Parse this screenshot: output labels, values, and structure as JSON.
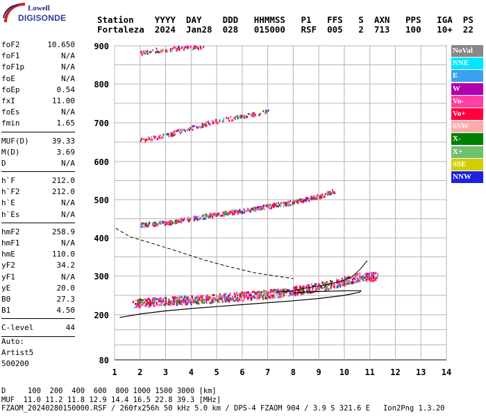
{
  "logo": {
    "top": "Lowell",
    "bottom": "DIGISONDE"
  },
  "header": {
    "labels": [
      "Station",
      "YYYY",
      "DAY",
      "DDD",
      "HHMMSS",
      "P1",
      "FFS",
      "S",
      "AXN",
      "PPS",
      "IGA",
      "PS"
    ],
    "values": [
      "Fortaleza",
      "2024",
      "Jan28",
      "028",
      "015000",
      "RSF",
      "005",
      "2",
      "713",
      "100",
      "10+",
      "22"
    ]
  },
  "params": {
    "group1": [
      {
        "k": "foF2",
        "v": "10.650"
      },
      {
        "k": "foF1",
        "v": "N/A"
      },
      {
        "k": "foF1p",
        "v": "N/A"
      },
      {
        "k": "foE",
        "v": "N/A"
      },
      {
        "k": "foEp",
        "v": "0.54"
      },
      {
        "k": "fxI",
        "v": "11.00"
      },
      {
        "k": "foEs",
        "v": "N/A"
      },
      {
        "k": "fmin",
        "v": "1.65"
      }
    ],
    "group2": [
      {
        "k": "MUF(D)",
        "v": "39.33"
      },
      {
        "k": "M(D)",
        "v": "3.69"
      },
      {
        "k": "D",
        "v": "N/A"
      }
    ],
    "group3": [
      {
        "k": "h`F",
        "v": "212.0"
      },
      {
        "k": "h`F2",
        "v": "212.0"
      },
      {
        "k": "h`E",
        "v": "N/A"
      },
      {
        "k": "h`Es",
        "v": "N/A"
      }
    ],
    "group4": [
      {
        "k": "hmF2",
        "v": "258.9"
      },
      {
        "k": "hmF1",
        "v": "N/A"
      },
      {
        "k": "hmE",
        "v": "110.0"
      },
      {
        "k": "yF2",
        "v": "34.2"
      },
      {
        "k": "yF1",
        "v": "N/A"
      },
      {
        "k": "yE",
        "v": "20.0"
      },
      {
        "k": "B0",
        "v": "27.3"
      },
      {
        "k": "B1",
        "v": "4.50"
      }
    ],
    "group5": [
      {
        "k": "C-level",
        "v": "44"
      }
    ]
  },
  "auto": {
    "line1": "Auto:",
    "line2": "Artist5",
    "line3": "500200"
  },
  "legend": [
    {
      "label": "NoVal",
      "color": "#888888"
    },
    {
      "label": "NNE",
      "color": "#00e6ff"
    },
    {
      "label": "E",
      "color": "#3aa0f0"
    },
    {
      "label": "W",
      "color": "#b000b0"
    },
    {
      "label": "Vo-",
      "color": "#ff40a0"
    },
    {
      "label": "Vo+",
      "color": "#ff0040"
    },
    {
      "label": "SSW",
      "color": "#ffaaaa"
    },
    {
      "label": "X-",
      "color": "#008000"
    },
    {
      "label": "X+",
      "color": "#70c070"
    },
    {
      "label": "SSE",
      "color": "#d0d000"
    },
    {
      "label": "NNW",
      "color": "#2020e0"
    }
  ],
  "footer": {
    "line1": "D     100  200  400  600  800 1000 1500 3000 [km]",
    "line2": "MUF  11.0 11.2 11.8 12.9 14.4 16.5 22.8 39.3 [MHz]",
    "line3": "FZAOM_20240280150000.RSF / 260fx256h 50 kHz 5.0 km / DPS-4 FZAOM 904 / 3.9 S 321.6 E   Ion2Png 1.3.20"
  },
  "chart_data": {
    "type": "scatter",
    "xlim": [
      1,
      14
    ],
    "ylim": [
      80,
      900
    ],
    "xticks": [
      "1",
      "2",
      "3",
      "4",
      "5",
      "6",
      "7",
      "8",
      "9",
      "10",
      "11",
      "12",
      "13",
      "14"
    ],
    "yticks": [
      "80",
      "200",
      "300",
      "400",
      "500",
      "600",
      "700",
      "800",
      "900"
    ],
    "ytick_values": [
      80,
      200,
      300,
      400,
      500,
      600,
      700,
      800,
      900
    ],
    "grid": true,
    "echo_traces": [
      {
        "name": "F-trace 1st hop",
        "points": [
          [
            1.7,
            231
          ],
          [
            2.5,
            235
          ],
          [
            3.5,
            238
          ],
          [
            4.5,
            242
          ],
          [
            5.5,
            247
          ],
          [
            6.5,
            252
          ],
          [
            7.5,
            258
          ],
          [
            8.5,
            268
          ],
          [
            9.5,
            280
          ],
          [
            10.2,
            292
          ],
          [
            10.6,
            300
          ],
          [
            11.3,
            300
          ]
        ]
      },
      {
        "name": "F-trace 2nd hop",
        "points": [
          [
            2.0,
            436
          ],
          [
            3.0,
            441
          ],
          [
            4.0,
            452
          ],
          [
            5.0,
            464
          ],
          [
            6.0,
            472
          ],
          [
            7.0,
            484
          ],
          [
            8.0,
            495
          ],
          [
            9.0,
            510
          ],
          [
            9.6,
            525
          ]
        ]
      },
      {
        "name": "F-trace 3rd hop",
        "points": [
          [
            2.0,
            655
          ],
          [
            3.0,
            670
          ],
          [
            4.0,
            688
          ],
          [
            5.0,
            706
          ],
          [
            6.0,
            718
          ],
          [
            7.0,
            730
          ]
        ]
      },
      {
        "name": "F-trace 4th hop",
        "points": [
          [
            2.0,
            884
          ],
          [
            2.6,
            890
          ],
          [
            3.6,
            895
          ],
          [
            4.5,
            898
          ]
        ]
      }
    ],
    "profile_solid": [
      [
        1.2,
        193
      ],
      [
        2.0,
        202
      ],
      [
        3.0,
        210
      ],
      [
        4.0,
        216
      ],
      [
        5.0,
        221
      ],
      [
        6.0,
        226
      ],
      [
        7.0,
        231
      ],
      [
        8.0,
        236
      ],
      [
        9.0,
        242
      ],
      [
        10.0,
        250
      ],
      [
        10.6,
        258
      ],
      [
        10.65,
        262
      ],
      [
        10.2,
        262
      ],
      [
        9.0,
        260
      ],
      [
        8.0,
        257
      ]
    ],
    "profile_dashed": [
      [
        1.05,
        425
      ],
      [
        1.6,
        403
      ],
      [
        2.5,
        385
      ],
      [
        3.5,
        364
      ],
      [
        4.5,
        342
      ],
      [
        5.5,
        324
      ],
      [
        6.5,
        308
      ],
      [
        7.5,
        298
      ],
      [
        8.0,
        293
      ]
    ],
    "profile_thin": [
      [
        7.3,
        258
      ],
      [
        8.0,
        262
      ],
      [
        8.6,
        270
      ],
      [
        9.2,
        276
      ],
      [
        9.8,
        285
      ],
      [
        10.3,
        298
      ],
      [
        10.6,
        316
      ],
      [
        10.9,
        340
      ]
    ]
  }
}
